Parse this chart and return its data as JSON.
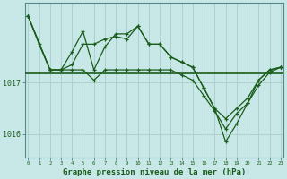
{
  "background_color": "#c8e8e8",
  "grid_color": "#b0d0d0",
  "line_color": "#1a5c1a",
  "title": "Graphe pression niveau de la mer (hPa)",
  "title_fontsize": 6.5,
  "yticks": [
    1016,
    1017
  ],
  "ylim": [
    1015.55,
    1018.55
  ],
  "xlim": [
    -0.3,
    23.3
  ],
  "xticks": [
    0,
    1,
    2,
    3,
    4,
    5,
    6,
    7,
    8,
    9,
    10,
    11,
    12,
    13,
    14,
    15,
    16,
    17,
    18,
    19,
    20,
    21,
    22,
    23
  ],
  "hline_y": 1017.18,
  "line1_x": [
    0,
    1,
    2,
    3,
    4,
    5,
    6,
    7,
    8,
    9,
    10,
    11,
    12,
    13,
    14,
    15,
    16,
    17,
    18,
    19,
    20,
    21,
    22,
    23
  ],
  "line1_y": [
    1018.3,
    1017.75,
    1017.25,
    1017.25,
    1017.35,
    1017.75,
    1017.75,
    1017.85,
    1017.9,
    1017.85,
    1018.1,
    1017.75,
    1017.75,
    1017.5,
    1017.4,
    1017.3,
    1016.9,
    1016.5,
    1016.3,
    1016.5,
    1016.7,
    1017.05,
    1017.25,
    1017.3
  ],
  "line2_x": [
    0,
    2,
    3,
    4,
    5,
    6,
    7,
    8,
    9,
    10,
    11,
    12,
    13,
    14,
    15,
    16,
    17,
    18,
    19,
    20,
    21,
    22,
    23
  ],
  "line2_y": [
    1018.3,
    1017.25,
    1017.25,
    1017.6,
    1018.0,
    1017.25,
    1017.7,
    1017.95,
    1017.95,
    1018.1,
    1017.75,
    1017.75,
    1017.5,
    1017.4,
    1017.3,
    1016.9,
    1016.5,
    1015.85,
    1016.2,
    1016.6,
    1017.05,
    1017.25,
    1017.3
  ],
  "line3_x": [
    0,
    2,
    3,
    4,
    5,
    6,
    7,
    8,
    9,
    10,
    11,
    12,
    13,
    14,
    15,
    16,
    17,
    18,
    19,
    20,
    21,
    22,
    23
  ],
  "line3_y": [
    1018.3,
    1017.25,
    1017.25,
    1017.25,
    1017.25,
    1017.05,
    1017.25,
    1017.25,
    1017.25,
    1017.25,
    1017.25,
    1017.25,
    1017.25,
    1017.15,
    1017.05,
    1016.75,
    1016.45,
    1016.1,
    1016.4,
    1016.6,
    1016.95,
    1017.2,
    1017.3
  ]
}
